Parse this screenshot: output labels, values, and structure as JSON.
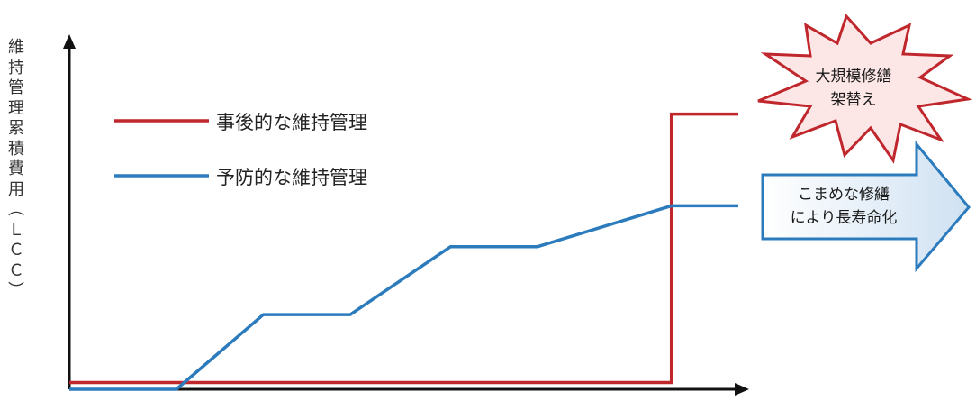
{
  "chart_data": {
    "type": "line",
    "title": "",
    "ylabel": "維持管理累積費用（LCC）",
    "xlabel": "",
    "grid": false,
    "legend_position": "top-left",
    "series": [
      {
        "name": "事後的な維持管理",
        "color": "#c0272d",
        "points": [
          [
            0,
            0.02
          ],
          [
            0.9,
            0.02
          ],
          [
            0.9,
            0.81
          ],
          [
            1.0,
            0.81
          ]
        ]
      },
      {
        "name": "予防的な維持管理",
        "color": "#2b7bbd",
        "points": [
          [
            0,
            0
          ],
          [
            0.16,
            0
          ],
          [
            0.29,
            0.22
          ],
          [
            0.42,
            0.22
          ],
          [
            0.57,
            0.42
          ],
          [
            0.7,
            0.42
          ],
          [
            0.9,
            0.54
          ],
          [
            1.0,
            0.54
          ]
        ]
      }
    ]
  },
  "ylabel_chars": [
    "維",
    "持",
    "管",
    "理",
    "累",
    "積",
    "費",
    "用",
    "︵",
    "Ｌ",
    "Ｃ",
    "Ｃ",
    "︶"
  ],
  "legend": [
    {
      "label": "事後的な維持管理",
      "color": "#c0272d"
    },
    {
      "label": "予防的な維持管理",
      "color": "#2b7bbd"
    }
  ],
  "callouts": {
    "burst": {
      "line1": "大規模修繕",
      "line2": "架替え",
      "border": "#c0272d",
      "fill": "#fbe2e2"
    },
    "arrow": {
      "line1": "こまめな修繕",
      "line2": "により長寿命化",
      "border": "#2b7bbd",
      "fill": "#dbe9f5"
    }
  }
}
